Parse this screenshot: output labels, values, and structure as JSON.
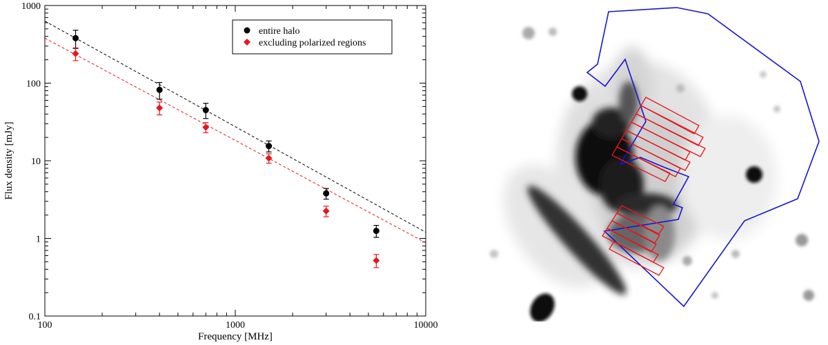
{
  "chart_data": [
    {
      "type": "scatter",
      "xlabel": "Frequency [MHz]",
      "ylabel": "Flux density [mJy]",
      "xscale": "log",
      "yscale": "log",
      "xlim": [
        100,
        10000
      ],
      "ylim": [
        0.1,
        1000
      ],
      "xticks": [
        "100",
        "1000",
        "10000"
      ],
      "yticks": [
        "0.1",
        "1",
        "10",
        "100",
        "1000"
      ],
      "legend_position": "top-right",
      "series": [
        {
          "name": "entire halo",
          "marker": "circle",
          "color": "#000000",
          "x": [
            145,
            400,
            700,
            1500,
            3000,
            5500
          ],
          "y": [
            380,
            82,
            45,
            15.5,
            3.8,
            1.25
          ],
          "err_low": [
            100,
            20,
            10,
            2.5,
            0.6,
            0.22
          ],
          "err_high": [
            100,
            20,
            10,
            2.5,
            0.6,
            0.22
          ],
          "fit": {
            "x": [
              100,
              10000
            ],
            "y": [
              630,
              1.2
            ],
            "style": "dashed"
          }
        },
        {
          "name": "excluding polarized regions",
          "marker": "diamond",
          "color": "#e8151b",
          "x": [
            145,
            400,
            700,
            1500,
            3000,
            5500
          ],
          "y": [
            240,
            48,
            27,
            10.8,
            2.25,
            0.52
          ],
          "err_low": [
            45,
            9,
            4,
            1.5,
            0.35,
            0.1
          ],
          "err_high": [
            45,
            9,
            4,
            1.5,
            0.35,
            0.1
          ],
          "fit": {
            "x": [
              100,
              10000
            ],
            "y": [
              380,
              0.88
            ],
            "style": "dashed"
          }
        }
      ]
    }
  ],
  "image_panel": {
    "content": "grayscale radio map",
    "region_outline_color": "#1414d2",
    "polarized_region_color": "#e8151b",
    "polarized_strip_count": [
      7,
      5
    ]
  }
}
